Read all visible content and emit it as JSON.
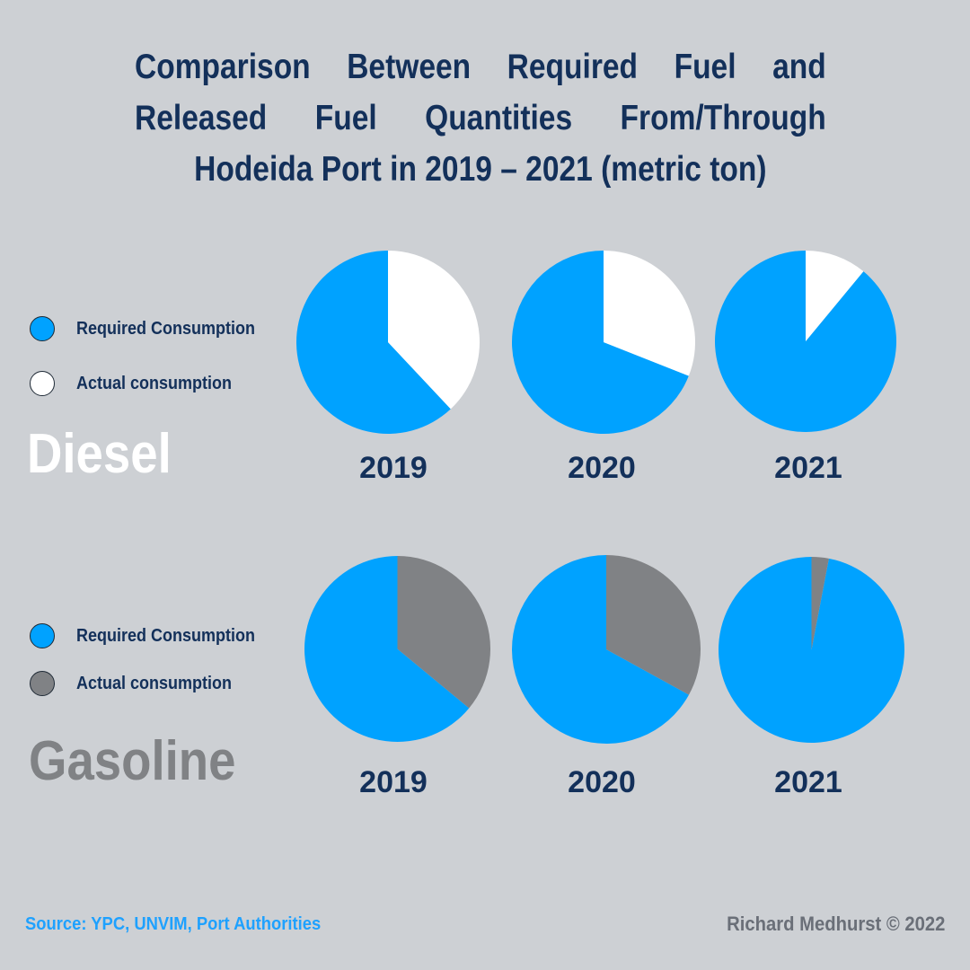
{
  "title_lines": [
    "Comparison Between Required Fuel and",
    "Released Fuel Quantities From/Through",
    "Hodeida Port in 2019 – 2021 (metric ton)"
  ],
  "colors": {
    "required": "#00a2ff",
    "diesel_actual": "#ffffff",
    "gasoline_actual": "#808285",
    "title": "#13305a"
  },
  "legend": {
    "diesel": {
      "required": "Required Consumption",
      "actual": "Actual consumption"
    },
    "gasoline": {
      "required": "Required Consumption",
      "actual": "Actual consumption"
    }
  },
  "sections": {
    "diesel": "Diesel",
    "gasoline": "Gasoline"
  },
  "chart_data": [
    {
      "type": "pie",
      "title": "Diesel",
      "series": [
        {
          "name": "2019",
          "labels": [
            "Required Consumption",
            "Actual consumption"
          ],
          "values": [
            62,
            38
          ]
        },
        {
          "name": "2020",
          "labels": [
            "Required Consumption",
            "Actual consumption"
          ],
          "values": [
            69,
            31
          ]
        },
        {
          "name": "2021",
          "labels": [
            "Required Consumption",
            "Actual consumption"
          ],
          "values": [
            89,
            11
          ]
        }
      ]
    },
    {
      "type": "pie",
      "title": "Gasoline",
      "series": [
        {
          "name": "2019",
          "labels": [
            "Required Consumption",
            "Actual consumption"
          ],
          "values": [
            64,
            36
          ]
        },
        {
          "name": "2020",
          "labels": [
            "Required Consumption",
            "Actual consumption"
          ],
          "values": [
            67,
            33
          ]
        },
        {
          "name": "2021",
          "labels": [
            "Required Consumption",
            "Actual consumption"
          ],
          "values": [
            97,
            3
          ]
        }
      ]
    }
  ],
  "footer": {
    "source": "Source: YPC, UNVIM, Port Authorities",
    "credit": "Richard Medhurst © 2022"
  }
}
